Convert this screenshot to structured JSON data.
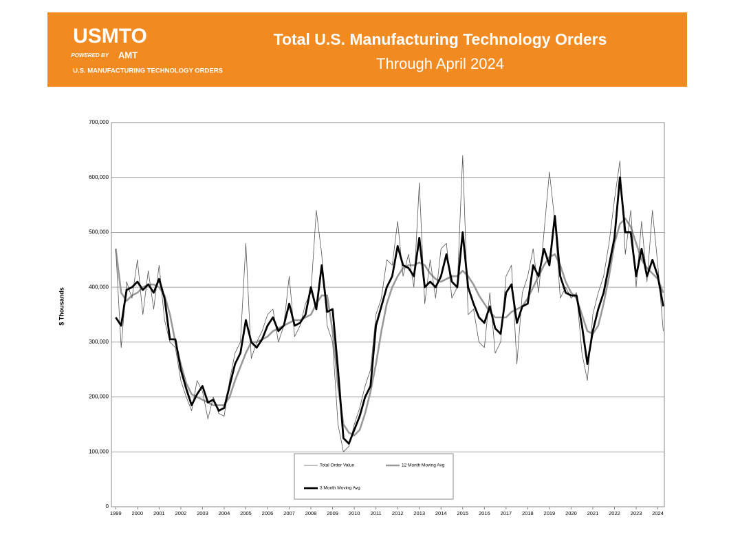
{
  "header": {
    "logo": "USMTO",
    "powered_by": "POWERED BY",
    "brand": "AMT",
    "tagline": "U.S. MANUFACTURING TECHNOLOGY ORDERS"
  },
  "chart_data": {
    "type": "line",
    "title": "Total U.S. Manufacturing Technology Orders",
    "subtitle": "Through April 2024",
    "y_label": "$ Thousands",
    "x": [
      1999,
      1999.25,
      1999.5,
      1999.75,
      2000,
      2000.25,
      2000.5,
      2000.75,
      2001,
      2001.25,
      2001.5,
      2001.75,
      2002,
      2002.25,
      2002.5,
      2002.75,
      2003,
      2003.25,
      2003.5,
      2003.75,
      2004,
      2004.25,
      2004.5,
      2004.75,
      2005,
      2005.25,
      2005.5,
      2005.75,
      2006,
      2006.25,
      2006.5,
      2006.75,
      2007,
      2007.25,
      2007.5,
      2007.75,
      2008,
      2008.25,
      2008.5,
      2008.75,
      2009,
      2009.25,
      2009.5,
      2009.75,
      2010,
      2010.25,
      2010.5,
      2010.75,
      2011,
      2011.25,
      2011.5,
      2011.75,
      2012,
      2012.25,
      2012.5,
      2012.75,
      2013,
      2013.25,
      2013.5,
      2013.75,
      2014,
      2014.25,
      2014.5,
      2014.75,
      2015,
      2015.25,
      2015.5,
      2015.75,
      2016,
      2016.25,
      2016.5,
      2016.75,
      2017,
      2017.25,
      2017.5,
      2017.75,
      2018,
      2018.25,
      2018.5,
      2018.75,
      2019,
      2019.25,
      2019.5,
      2019.75,
      2020,
      2020.25,
      2020.5,
      2020.75,
      2021,
      2021.25,
      2021.5,
      2021.75,
      2022,
      2022.25,
      2022.5,
      2022.75,
      2023,
      2023.25,
      2023.5,
      2023.75,
      2024,
      2024.25
    ],
    "series": [
      {
        "name": "Total Order Value",
        "color": "#555555",
        "width": 0.8,
        "values": [
          470000,
          290000,
          410000,
          380000,
          450000,
          350000,
          430000,
          360000,
          440000,
          340000,
          300000,
          290000,
          230000,
          200000,
          175000,
          230000,
          210000,
          160000,
          200000,
          170000,
          165000,
          230000,
          280000,
          300000,
          480000,
          270000,
          300000,
          320000,
          350000,
          360000,
          300000,
          330000,
          420000,
          310000,
          330000,
          370000,
          390000,
          540000,
          460000,
          330000,
          300000,
          150000,
          100000,
          110000,
          150000,
          180000,
          220000,
          250000,
          350000,
          380000,
          450000,
          440000,
          520000,
          420000,
          460000,
          400000,
          590000,
          370000,
          450000,
          380000,
          470000,
          480000,
          380000,
          400000,
          640000,
          350000,
          360000,
          300000,
          290000,
          390000,
          280000,
          300000,
          420000,
          440000,
          260000,
          390000,
          420000,
          470000,
          390000,
          500000,
          610000,
          520000,
          380000,
          400000,
          380000,
          390000,
          280000,
          230000,
          350000,
          390000,
          420000,
          480000,
          560000,
          630000,
          460000,
          540000,
          400000,
          520000,
          410000,
          540000,
          440000,
          320000
        ]
      },
      {
        "name": "12 Month Moving Avg",
        "color": "#999999",
        "width": 2.6,
        "values": [
          470000,
          390000,
          375000,
          385000,
          390000,
          400000,
          405000,
          405000,
          400000,
          385000,
          350000,
          300000,
          260000,
          225000,
          205000,
          200000,
          195000,
          190000,
          185000,
          185000,
          185000,
          200000,
          230000,
          255000,
          280000,
          300000,
          300000,
          305000,
          310000,
          320000,
          325000,
          330000,
          335000,
          340000,
          340000,
          345000,
          350000,
          370000,
          385000,
          385000,
          320000,
          220000,
          150000,
          135000,
          130000,
          140000,
          170000,
          210000,
          260000,
          320000,
          370000,
          400000,
          420000,
          435000,
          440000,
          440000,
          445000,
          440000,
          425000,
          415000,
          410000,
          415000,
          420000,
          420000,
          430000,
          420000,
          405000,
          385000,
          370000,
          355000,
          345000,
          345000,
          345000,
          355000,
          360000,
          365000,
          380000,
          400000,
          420000,
          440000,
          455000,
          460000,
          440000,
          410000,
          390000,
          380000,
          350000,
          320000,
          315000,
          330000,
          370000,
          420000,
          480000,
          515000,
          525000,
          510000,
          480000,
          450000,
          435000,
          425000,
          415000,
          390000
        ]
      },
      {
        "name": "3 Month Moving Avg",
        "color": "#000000",
        "width": 2.8,
        "values": [
          345000,
          330000,
          395000,
          400000,
          410000,
          395000,
          405000,
          390000,
          415000,
          380000,
          305000,
          305000,
          250000,
          215000,
          185000,
          205000,
          220000,
          190000,
          195000,
          175000,
          180000,
          220000,
          260000,
          280000,
          340000,
          300000,
          290000,
          305000,
          330000,
          345000,
          320000,
          330000,
          370000,
          330000,
          335000,
          350000,
          400000,
          360000,
          440000,
          355000,
          360000,
          250000,
          125000,
          115000,
          140000,
          165000,
          200000,
          220000,
          330000,
          365000,
          400000,
          420000,
          475000,
          440000,
          435000,
          420000,
          490000,
          400000,
          410000,
          400000,
          420000,
          460000,
          410000,
          400000,
          500000,
          400000,
          370000,
          345000,
          335000,
          365000,
          325000,
          315000,
          390000,
          405000,
          335000,
          365000,
          370000,
          440000,
          420000,
          470000,
          440000,
          530000,
          420000,
          390000,
          385000,
          385000,
          330000,
          260000,
          320000,
          360000,
          390000,
          440000,
          490000,
          600000,
          500000,
          500000,
          420000,
          470000,
          420000,
          450000,
          420000,
          365000
        ]
      }
    ],
    "xlim": [
      1998.8,
      2024.3
    ],
    "xticks": [
      1999,
      2000,
      2001,
      2002,
      2003,
      2004,
      2005,
      2006,
      2007,
      2008,
      2009,
      2010,
      2011,
      2012,
      2013,
      2014,
      2015,
      2016,
      2017,
      2018,
      2019,
      2020,
      2021,
      2022,
      2023,
      2024
    ],
    "ylim": [
      0,
      700000
    ],
    "yticks": [
      0,
      {
        "value": 100000,
        "label": "100,000"
      },
      {
        "value": 200000,
        "label": "200,000"
      },
      {
        "value": 300000,
        "label": "300,000"
      },
      {
        "value": 400000,
        "label": "400,000"
      },
      {
        "value": 500000,
        "label": "500,000"
      },
      {
        "value": 600000,
        "label": "600,000"
      },
      {
        "value": 700000,
        "label": "700,000"
      }
    ],
    "grid": true
  }
}
